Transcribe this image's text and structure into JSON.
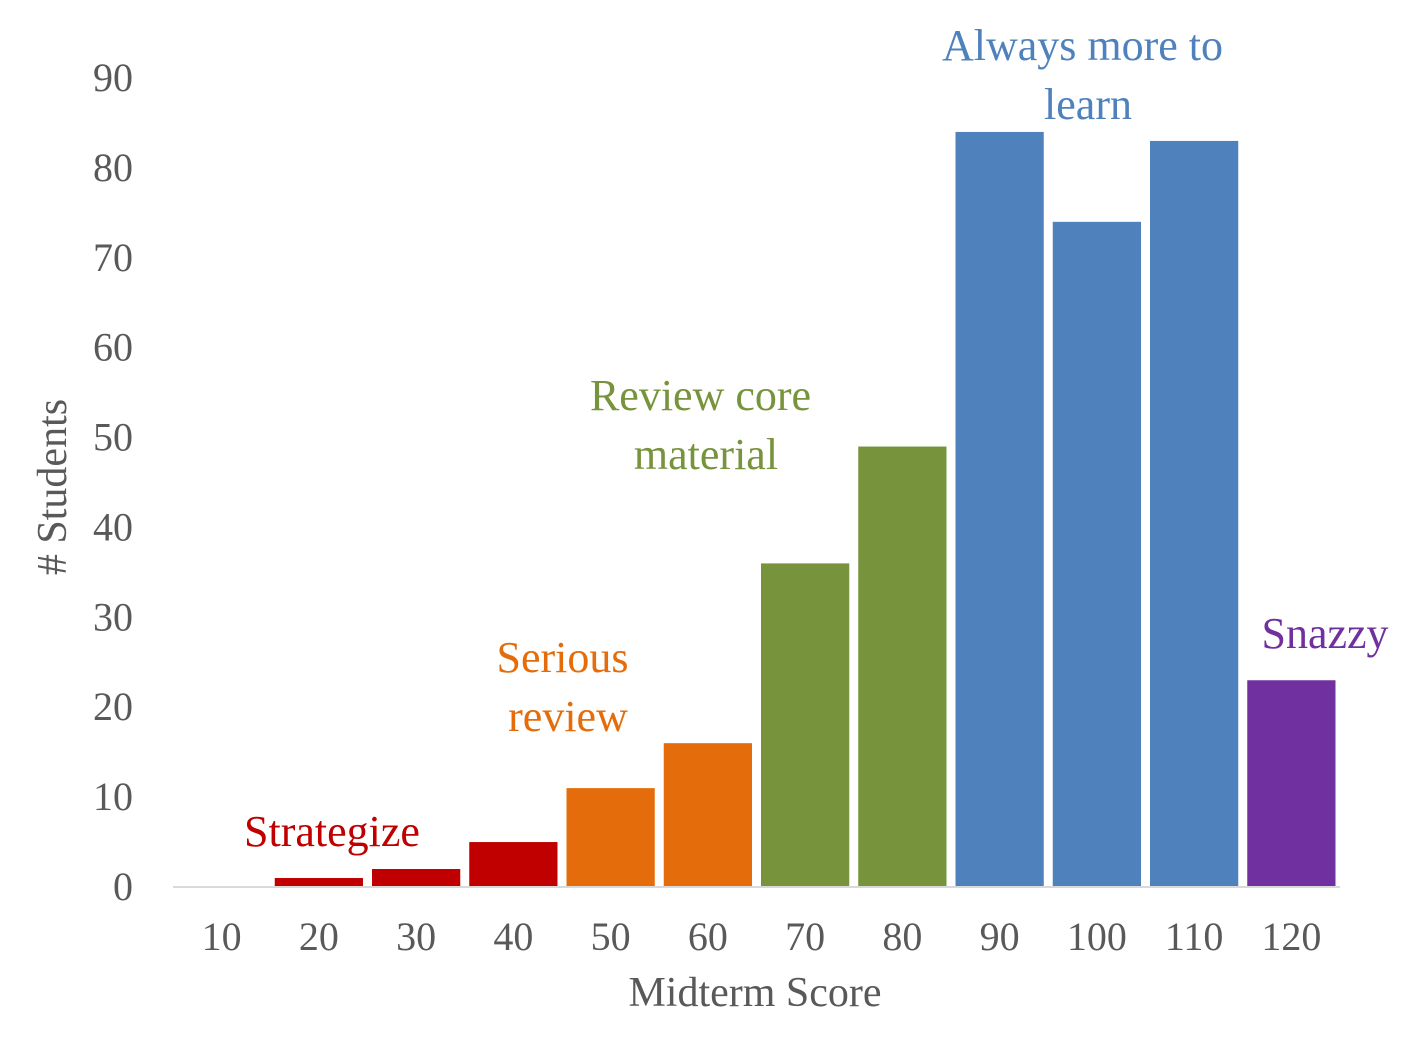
{
  "chart_data": {
    "type": "bar",
    "categories": [
      "10",
      "20",
      "30",
      "40",
      "50",
      "60",
      "70",
      "80",
      "90",
      "100",
      "110",
      "120"
    ],
    "values": [
      0,
      1,
      2,
      5,
      11,
      16,
      36,
      49,
      84,
      74,
      83,
      23
    ],
    "bar_colors": [
      "#C00000",
      "#C00000",
      "#C00000",
      "#C00000",
      "#E46C0A",
      "#E46C0A",
      "#77933C",
      "#77933C",
      "#4F81BD",
      "#4F81BD",
      "#4F81BD",
      "#7030A0"
    ],
    "xlabel": "Midterm Score",
    "ylabel": "# Students",
    "ylim": [
      0,
      90
    ],
    "yticks": [
      "0",
      "10",
      "20",
      "30",
      "40",
      "50",
      "60",
      "70",
      "80",
      "90"
    ],
    "grid": false,
    "legend": "none",
    "annotations": [
      {
        "lines": [
          "Strategize"
        ],
        "color": "#C00000",
        "near_categories": [
          "20",
          "30"
        ]
      },
      {
        "lines": [
          "Serious",
          "review"
        ],
        "color": "#E46C0A",
        "near_categories": [
          "50"
        ]
      },
      {
        "lines": [
          "Review core",
          "material"
        ],
        "color": "#77933C",
        "near_categories": [
          "70"
        ]
      },
      {
        "lines": [
          "Always more to",
          "learn"
        ],
        "color": "#4F81BD",
        "near_categories": [
          "90",
          "100"
        ]
      },
      {
        "lines": [
          "Snazzy"
        ],
        "color": "#7030A0",
        "near_categories": [
          "120"
        ]
      }
    ]
  }
}
